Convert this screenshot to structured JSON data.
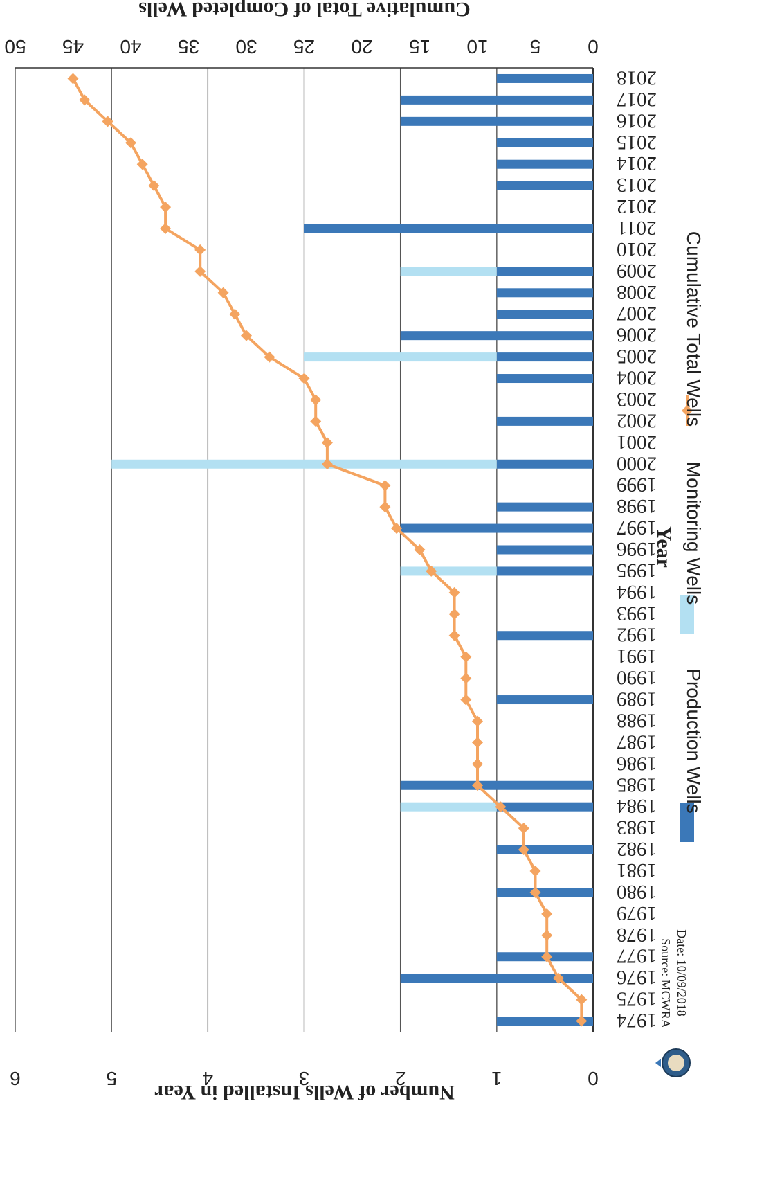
{
  "chart_data": {
    "type": "bar",
    "orientation": "rotated-180",
    "x_label": "Year",
    "y_left_label": "Number of Wells Installed in Year",
    "y_right_label": "Cumulative Total of Completed Wells",
    "y_left_range": [
      0,
      6
    ],
    "y_left_ticks": [
      "0",
      "1",
      "2",
      "3",
      "4",
      "5",
      "6"
    ],
    "y_right_range": [
      0,
      50
    ],
    "y_right_ticks": [
      "0",
      "5",
      "10",
      "15",
      "20",
      "25",
      "30",
      "35",
      "40",
      "45",
      "50"
    ],
    "grid": true,
    "categories": [
      "1974",
      "1975",
      "1976",
      "1977",
      "1978",
      "1979",
      "1980",
      "1981",
      "1982",
      "1983",
      "1984",
      "1985",
      "1986",
      "1987",
      "1988",
      "1989",
      "1990",
      "1991",
      "1992",
      "1993",
      "1994",
      "1995",
      "1996",
      "1997",
      "1998",
      "1999",
      "2000",
      "2001",
      "2002",
      "2003",
      "2004",
      "2005",
      "2006",
      "2007",
      "2008",
      "2009",
      "2010",
      "2011",
      "2012",
      "2013",
      "2014",
      "2015",
      "2016",
      "2017",
      "2018"
    ],
    "series": [
      {
        "name": "Production Wells",
        "kind": "bar",
        "axis": "left",
        "color": "#3b78b8",
        "values": [
          1,
          0,
          2,
          1,
          0,
          0,
          1,
          0,
          1,
          0,
          1,
          2,
          0,
          0,
          0,
          1,
          0,
          0,
          1,
          0,
          0,
          1,
          1,
          2,
          1,
          0,
          1,
          0,
          1,
          0,
          1,
          1,
          2,
          1,
          1,
          1,
          0,
          3,
          0,
          1,
          1,
          1,
          2,
          2,
          1
        ]
      },
      {
        "name": "Monitoring Wells",
        "kind": "bar",
        "axis": "left",
        "color": "#b3e0f2",
        "values": [
          0,
          0,
          0,
          0,
          0,
          0,
          0,
          0,
          0,
          0,
          1,
          0,
          0,
          0,
          0,
          0,
          0,
          0,
          0,
          0,
          0,
          1,
          0,
          0,
          0,
          0,
          4,
          0,
          0,
          0,
          0,
          2,
          0,
          0,
          0,
          1,
          0,
          0,
          0,
          0,
          0,
          0,
          0,
          0,
          0
        ]
      },
      {
        "name": "Cumulative Total Wells",
        "kind": "line",
        "axis": "right",
        "color": "#f4a460",
        "values": [
          1,
          1,
          3,
          4,
          4,
          4,
          5,
          5,
          6,
          6,
          8,
          10,
          10,
          10,
          10,
          11,
          11,
          11,
          12,
          12,
          12,
          14,
          15,
          17,
          18,
          18,
          23,
          23,
          24,
          24,
          25,
          28,
          30,
          31,
          32,
          34,
          34,
          37,
          37,
          38,
          39,
          40,
          42,
          44,
          45
        ]
      }
    ],
    "legend_position": "bottom",
    "source_label": "Source: MCWRA",
    "date_label": "Date: 10/09/2018"
  },
  "logo": {
    "name": "agency-seal-icon"
  }
}
